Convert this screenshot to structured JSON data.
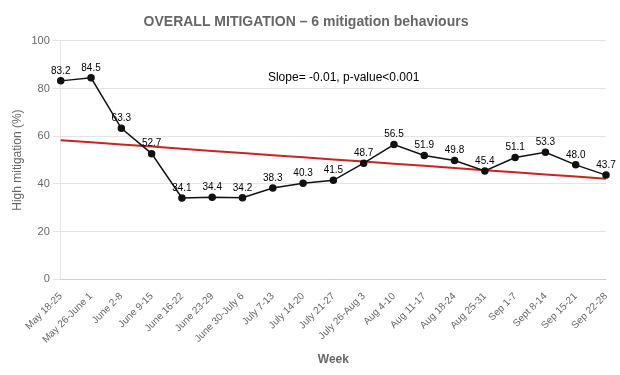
{
  "chart_data": {
    "type": "line",
    "title": "OVERALL MITIGATION – 6 mitigation behaviours",
    "x_label": "Week",
    "y_label": "High mitigation (%)",
    "categories": [
      "May 18-25",
      "May 26-June 1",
      "June 2-8",
      "June 9-15",
      "June 16-22",
      "June 23-29",
      "June 30-July 6",
      "July 7-13",
      "July 14-20",
      "July 21-27",
      "July 26-Aug 3",
      "Aug 4-10",
      "Aug 11-17",
      "Aug 18-24",
      "Aug 25-31",
      "Sep 1-7",
      "Sept 8-14",
      "Sep 15-21",
      "Sep 22-28"
    ],
    "series": [
      {
        "color": "#111111",
        "marker": "o",
        "line_style": "solid",
        "data_labels": true,
        "values": [
          83.2,
          84.5,
          63.3,
          52.7,
          34.1,
          34.4,
          34.2,
          38.3,
          40.3,
          41.5,
          48.7,
          56.5,
          51.9,
          49.8,
          45.4,
          51.1,
          53.3,
          48.0,
          43.7
        ],
        "value_labels": [
          "83.2",
          "84.5",
          "63.3",
          "52.7",
          "34.1",
          "34.4",
          "34.2",
          "38.3",
          "40.3",
          "41.5",
          "48.7",
          "56.5",
          "51.9",
          "49.8",
          "45.4",
          "51.1",
          "53.3",
          "48.0",
          "43.7"
        ]
      },
      {
        "color": "#cc2222",
        "marker": "none",
        "line_style": "solid",
        "data_labels": false,
        "values": [
          58.33,
          57.43,
          56.53,
          55.64,
          54.74,
          53.84,
          52.95,
          52.05,
          51.15,
          50.26,
          49.36,
          48.46,
          47.57,
          46.67,
          45.77,
          44.88,
          43.98,
          43.08,
          42.19
        ]
      }
    ],
    "annotations": [
      "Slope= -0.01, p-value<0.001"
    ],
    "ylim": [
      0,
      100
    ],
    "yticks": [
      0,
      20,
      40,
      60,
      80,
      100
    ],
    "grid": "y"
  }
}
